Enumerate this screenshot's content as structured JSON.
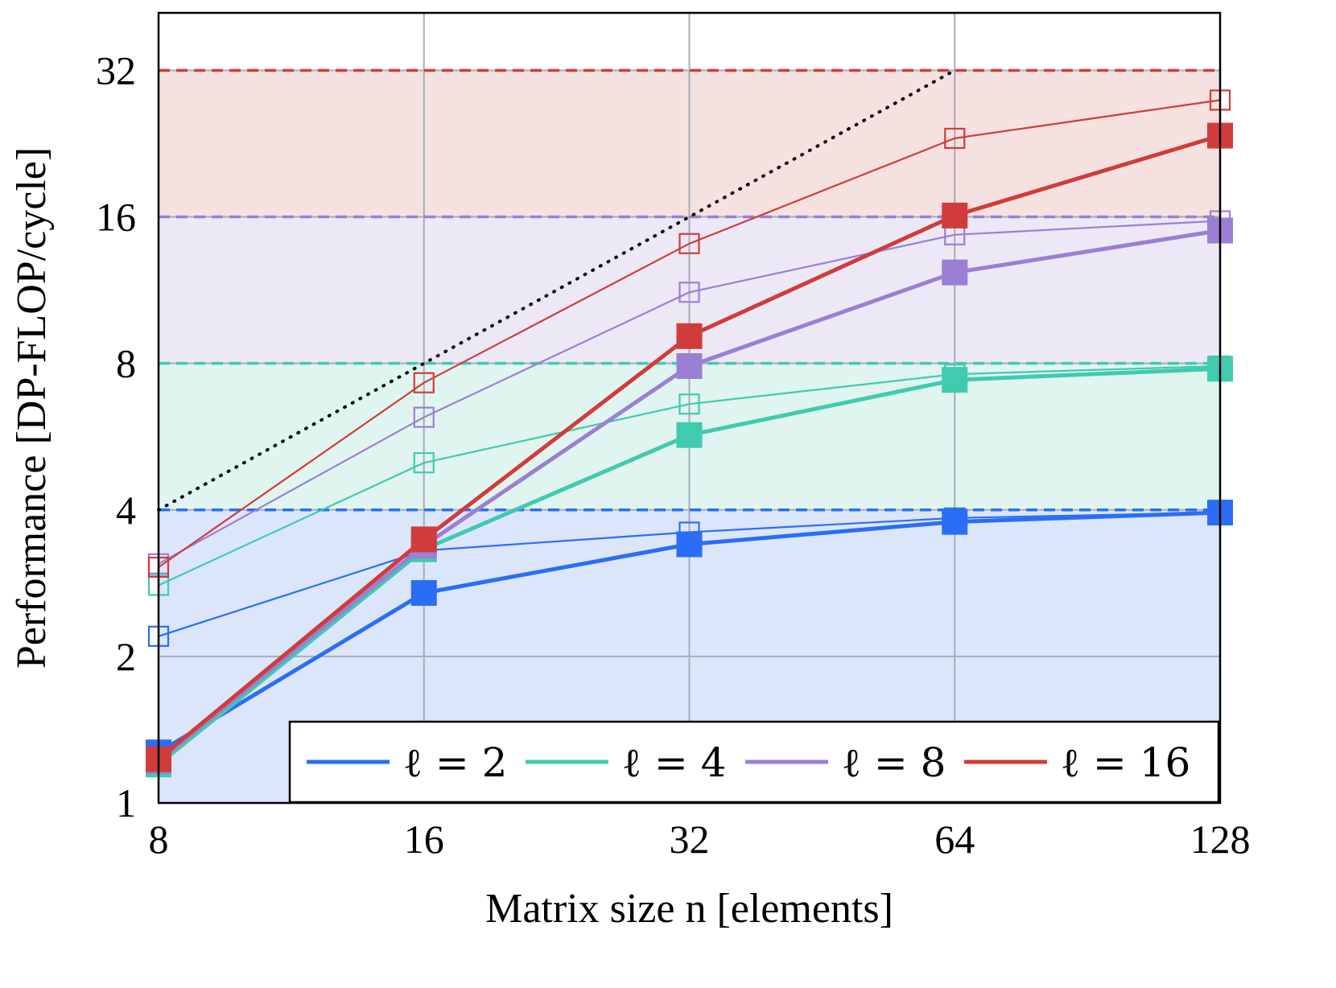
{
  "chart_data": {
    "type": "line",
    "title": "",
    "xlabel": "Matrix size n [elements]",
    "ylabel": "Performance [DP-FLOP/cycle]",
    "x_scale": "log2",
    "y_scale": "log2",
    "xlim": [
      8,
      128
    ],
    "ylim": [
      1,
      42
    ],
    "x": [
      8,
      16,
      32,
      64,
      128
    ],
    "x_tick_labels": [
      "8",
      "16",
      "32",
      "64",
      "128"
    ],
    "y_ticks": [
      1,
      2,
      4,
      8,
      16,
      32
    ],
    "y_tick_labels": [
      "1",
      "2",
      "4",
      "8",
      "16",
      "32"
    ],
    "grid": true,
    "legend_position": "bottom-right",
    "legend_labels": [
      "ℓ = 2",
      "ℓ = 4",
      "ℓ = 8",
      "ℓ = 16"
    ],
    "peak_bands": [
      {
        "from": 1,
        "to": 4,
        "color": "#dce6fb"
      },
      {
        "from": 4,
        "to": 8,
        "color": "#e0f5ef"
      },
      {
        "from": 8,
        "to": 16,
        "color": "#ede8f6"
      },
      {
        "from": 16,
        "to": 32,
        "color": "#f6e1e1"
      }
    ],
    "peak_lines": [
      {
        "value": 4,
        "color": "#2b6ef5"
      },
      {
        "value": 8,
        "color": "#40cab0"
      },
      {
        "value": 16,
        "color": "#9b7fd4"
      },
      {
        "value": 32,
        "color": "#d03c3c"
      }
    ],
    "bound_line": {
      "x": [
        8,
        64
      ],
      "y": [
        4,
        32
      ],
      "style": "dotted",
      "color": "#000000"
    },
    "series": [
      {
        "name": "ℓ = 2",
        "color": "#2b6ef5",
        "marker": "filled-square",
        "values": [
          1.27,
          2.7,
          3.4,
          3.78,
          3.95
        ]
      },
      {
        "name": "ℓ = 2",
        "color": "#2b6ef5",
        "marker": "open-square",
        "values": [
          2.2,
          3.3,
          3.6,
          3.85,
          3.95
        ]
      },
      {
        "name": "ℓ = 4",
        "color": "#40cab0",
        "marker": "filled-square",
        "values": [
          1.2,
          3.32,
          5.7,
          7.4,
          7.8
        ]
      },
      {
        "name": "ℓ = 4",
        "color": "#40cab0",
        "marker": "open-square",
        "values": [
          2.8,
          5.0,
          6.6,
          7.6,
          7.9
        ]
      },
      {
        "name": "ℓ = 8",
        "color": "#9b7fd4",
        "marker": "filled-square",
        "values": [
          1.22,
          3.38,
          7.9,
          12.3,
          15.0
        ]
      },
      {
        "name": "ℓ = 8",
        "color": "#9b7fd4",
        "marker": "open-square",
        "values": [
          3.1,
          6.2,
          11.2,
          14.7,
          15.7
        ]
      },
      {
        "name": "ℓ = 16",
        "color": "#d03c3c",
        "marker": "filled-square",
        "values": [
          1.23,
          3.48,
          9.1,
          16.1,
          23.5
        ]
      },
      {
        "name": "ℓ = 16",
        "color": "#d03c3c",
        "marker": "open-square",
        "values": [
          3.05,
          7.3,
          14.1,
          23.2,
          27.8
        ]
      }
    ]
  }
}
